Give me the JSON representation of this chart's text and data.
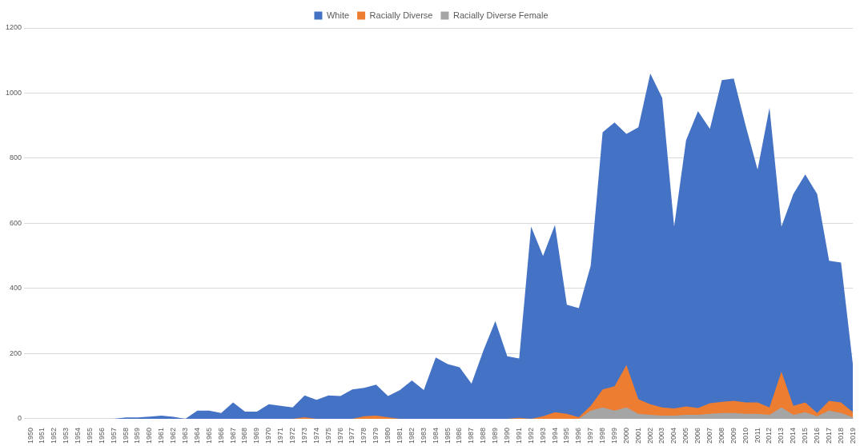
{
  "chart_data": {
    "type": "area",
    "categories": [
      "1950",
      "1951",
      "1952",
      "1953",
      "1954",
      "1955",
      "1956",
      "1957",
      "1958",
      "1959",
      "1960",
      "1961",
      "1962",
      "1963",
      "1964",
      "1965",
      "1966",
      "1967",
      "1968",
      "1969",
      "1970",
      "1971",
      "1972",
      "1973",
      "1974",
      "1975",
      "1976",
      "1977",
      "1978",
      "1979",
      "1980",
      "1981",
      "1982",
      "1983",
      "1984",
      "1985",
      "1986",
      "1987",
      "1988",
      "1989",
      "1990",
      "1991",
      "1992",
      "1993",
      "1994",
      "1995",
      "1996",
      "1997",
      "1998",
      "1999",
      "2000",
      "2001",
      "2002",
      "2003",
      "2004",
      "2005",
      "2006",
      "2007",
      "2008",
      "2009",
      "2010",
      "2011",
      "2012",
      "2013",
      "2014",
      "2015",
      "2016",
      "2017",
      "2018",
      "2019"
    ],
    "series": [
      {
        "name": "White",
        "color": "#4472c4",
        "values": [
          0,
          0,
          0,
          0,
          0,
          0,
          0,
          0,
          4,
          4,
          7,
          10,
          6,
          0,
          25,
          25,
          18,
          50,
          22,
          22,
          45,
          40,
          35,
          72,
          58,
          72,
          70,
          90,
          95,
          105,
          70,
          88,
          118,
          88,
          188,
          168,
          158,
          108,
          210,
          300,
          192,
          185,
          590,
          500,
          595,
          350,
          340,
          470,
          880,
          910,
          875,
          895,
          1060,
          985,
          590,
          855,
          945,
          890,
          1040,
          1045,
          900,
          765,
          955,
          590,
          690,
          750,
          690,
          485,
          480,
          165
        ]
      },
      {
        "name": "Racially Diverse",
        "color": "#ed7d31",
        "values": [
          0,
          0,
          0,
          0,
          0,
          0,
          0,
          0,
          0,
          0,
          0,
          0,
          0,
          0,
          0,
          0,
          0,
          0,
          0,
          0,
          0,
          0,
          0,
          5,
          0,
          0,
          0,
          0,
          8,
          10,
          5,
          0,
          0,
          0,
          0,
          0,
          0,
          0,
          0,
          0,
          0,
          3,
          0,
          8,
          20,
          15,
          5,
          40,
          90,
          100,
          165,
          60,
          45,
          35,
          32,
          38,
          33,
          48,
          52,
          55,
          50,
          50,
          35,
          145,
          40,
          50,
          18,
          55,
          50,
          20
        ]
      },
      {
        "name": "Racially Diverse Female",
        "color": "#a5a5a5",
        "values": [
          0,
          0,
          0,
          0,
          0,
          0,
          0,
          0,
          0,
          0,
          0,
          0,
          0,
          0,
          0,
          0,
          0,
          0,
          0,
          0,
          0,
          0,
          0,
          0,
          0,
          0,
          0,
          0,
          0,
          0,
          0,
          0,
          0,
          0,
          0,
          0,
          0,
          0,
          0,
          0,
          0,
          0,
          0,
          0,
          0,
          0,
          0,
          25,
          35,
          25,
          35,
          15,
          12,
          10,
          10,
          12,
          12,
          15,
          18,
          18,
          15,
          15,
          12,
          35,
          12,
          20,
          8,
          25,
          18,
          5
        ]
      }
    ],
    "ylim": [
      0,
      1200
    ],
    "yticks": [
      0,
      200,
      400,
      600,
      800,
      1000,
      1200
    ],
    "grid": "y",
    "legend": "top"
  }
}
